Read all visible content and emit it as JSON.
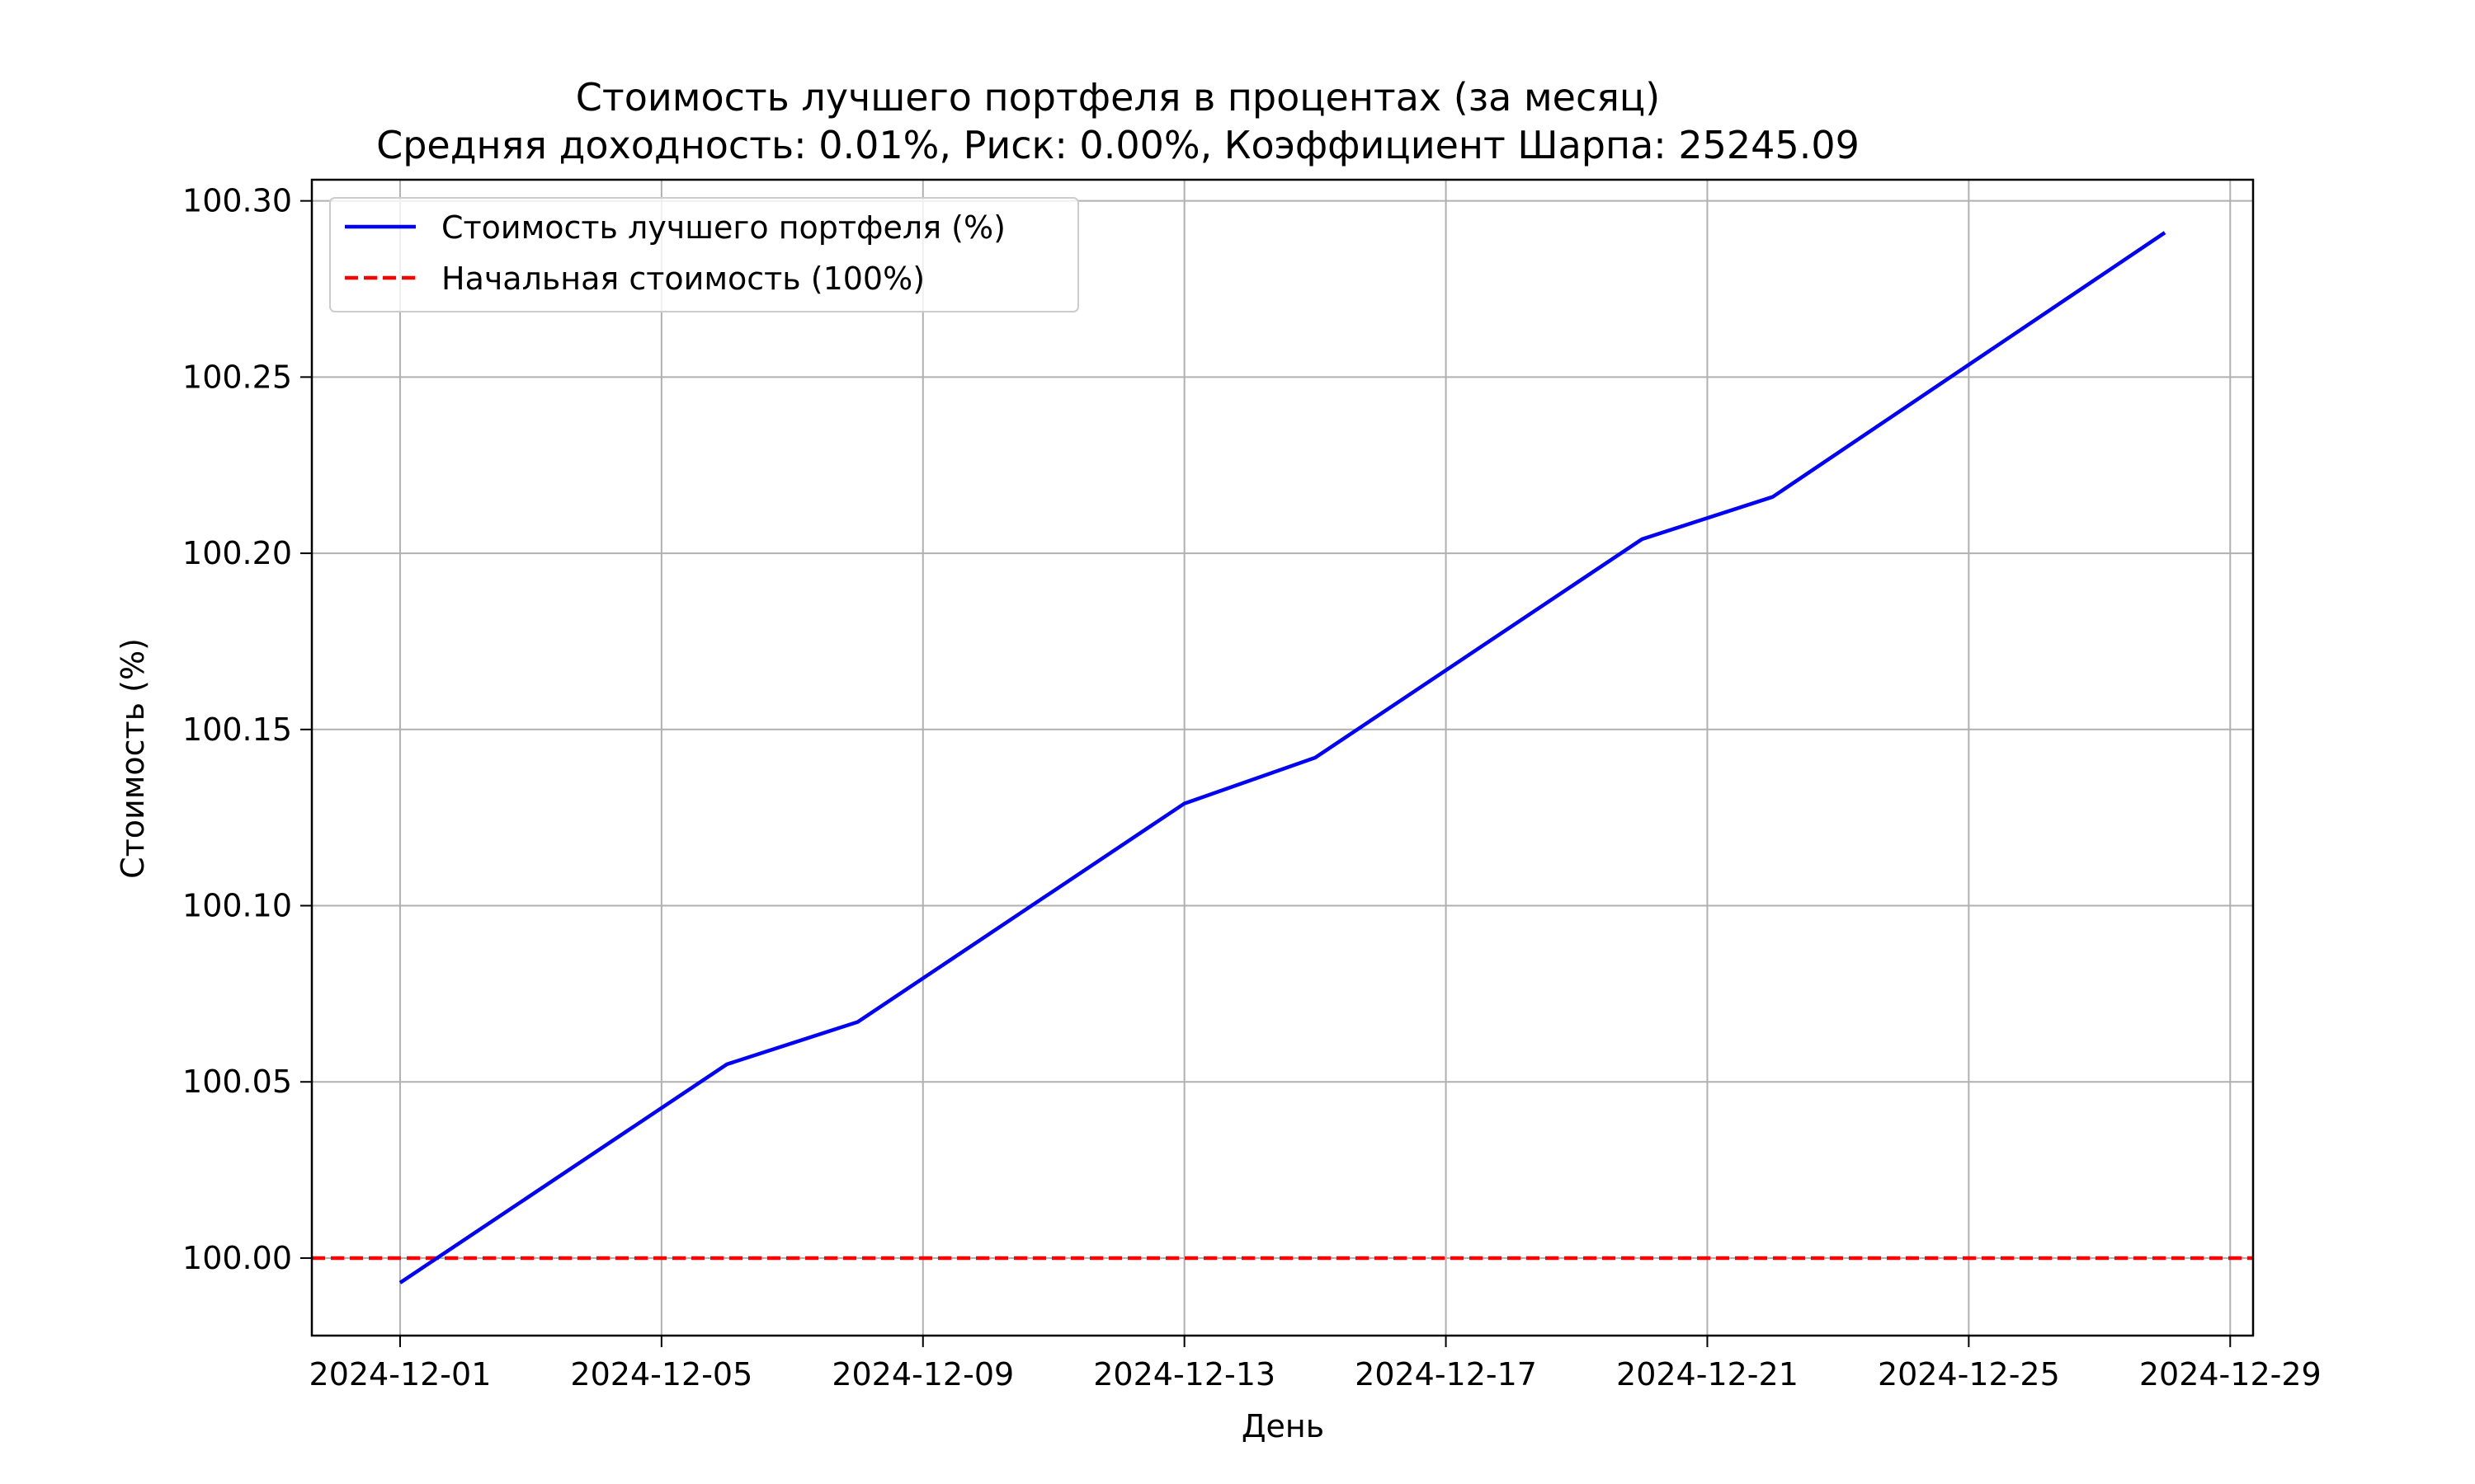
{
  "chart_data": {
    "type": "line",
    "title": "Стоимость лучшего портфеля в процентах (за месяц)",
    "subtitle": "Средняя доходность: 0.01%, Риск: 0.00%, Коэффициент Шарпа: 25245.09",
    "xlabel": "День",
    "ylabel": "Стоимость (%)",
    "x_ticks": [
      "2024-12-01",
      "2024-12-05",
      "2024-12-09",
      "2024-12-13",
      "2024-12-17",
      "2024-12-21",
      "2024-12-25",
      "2024-12-29"
    ],
    "y_ticks": [
      "100.00",
      "100.05",
      "100.10",
      "100.15",
      "100.20",
      "100.25",
      "100.30"
    ],
    "xlim": [
      "2024-11-29.65",
      "2024-12-29.35"
    ],
    "ylim": [
      99.978,
      100.306
    ],
    "grid": true,
    "legend_position": "top-left",
    "series": [
      {
        "name": "Стоимость лучшего портфеля (%)",
        "color": "#0000ff",
        "style": "solid",
        "x": [
          "2024-12-01",
          "2024-12-06",
          "2024-12-08",
          "2024-12-13",
          "2024-12-15",
          "2024-12-20",
          "2024-12-22",
          "2024-12-28"
        ],
        "y": [
          99.993,
          100.055,
          100.067,
          100.129,
          100.142,
          100.204,
          100.216,
          100.291
        ]
      },
      {
        "name": "Начальная стоимость (100%)",
        "color": "#ff0000",
        "style": "dashed",
        "y_const": 100.0
      }
    ]
  }
}
